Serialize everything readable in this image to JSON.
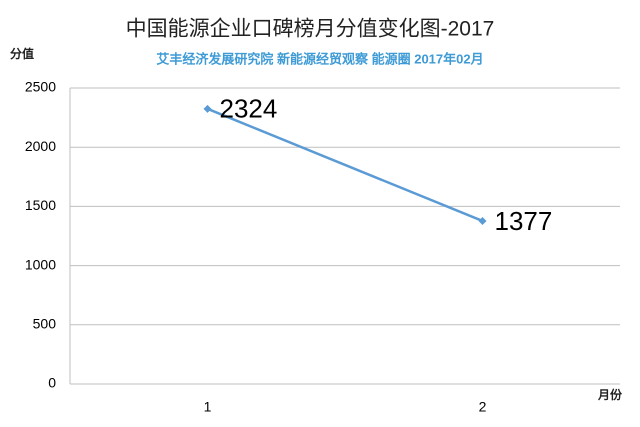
{
  "chart_data": {
    "type": "line",
    "title": "中国能源企业口碑榜月分值变化图-2017",
    "subtitle": "艾丰经济发展研究院  新能源经贸观察 能源圈 2017年02月",
    "y_label": "分值",
    "x_label": "月份",
    "categories": [
      "1",
      "2"
    ],
    "series": [
      {
        "name": "分值",
        "color": "#5b9bd5",
        "values": [
          2324,
          1377
        ]
      }
    ],
    "ylim": [
      0,
      2500
    ],
    "yticks": [
      0,
      500,
      1000,
      1500,
      2000,
      2500
    ],
    "grid": true
  }
}
